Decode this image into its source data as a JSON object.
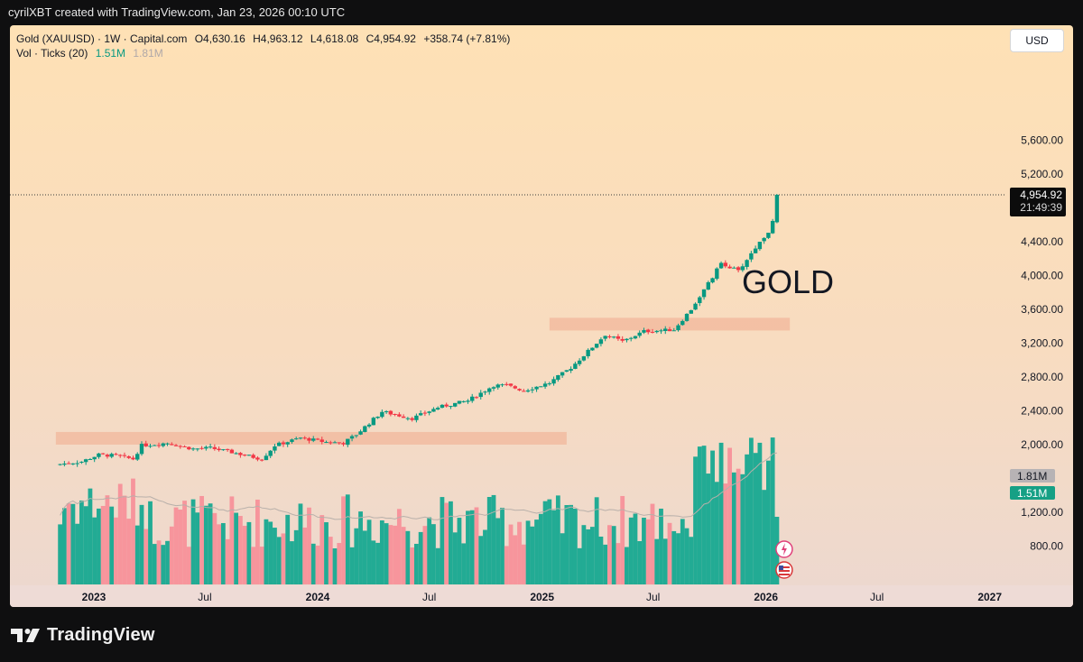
{
  "header": {
    "attribution": "cyrilXBT created with TradingView.com, Jan 23, 2026 00:10 UTC"
  },
  "legend": {
    "symbol": "Gold (XAUUSD) · 1W · Capital.com",
    "open": "O4,630.16",
    "high": "H4,963.12",
    "low": "L4,618.08",
    "close": "C4,954.92",
    "change": "+358.74 (+7.81%)",
    "vol_label": "Vol · Ticks (20)",
    "vol_value": "1.51M",
    "vol_ma": "1.81M"
  },
  "currency_button": "USD",
  "annotation": "GOLD",
  "footer": {
    "logo": "TradingView"
  },
  "colors": {
    "up": "#089981",
    "down": "#f23645",
    "up_vol": "#22ab94",
    "down_vol": "#f7959c",
    "zone": "#f2b79b"
  },
  "chart_data": {
    "type": "candlestick",
    "title": "Gold (XAUUSD) · 1W · Capital.com",
    "y_axis": {
      "ticks": [
        "5,600.00",
        "5,200.00",
        "4,400.00",
        "4,000.00",
        "3,600.00",
        "3,200.00",
        "2,800.00",
        "2,400.00",
        "2,000.00",
        "1,200.00",
        "800.00"
      ],
      "tick_values": [
        5600,
        5200,
        4400,
        4000,
        3600,
        3200,
        2800,
        2400,
        2000,
        1200,
        800
      ]
    },
    "x_axis": {
      "ticks": [
        "2023",
        "Jul",
        "2024",
        "Jul",
        "2025",
        "Jul",
        "2026",
        "Jul",
        "2027"
      ],
      "dates": [
        "2023-01-01",
        "2023-07-01",
        "2024-01-01",
        "2024-07-01",
        "2025-01-01",
        "2025-07-01",
        "2026-01-01",
        "2026-07-01",
        "2027-01-01"
      ]
    },
    "last_price": {
      "value": 4954.92,
      "label": "4,954.92",
      "countdown": "21:49:39"
    },
    "volume_labels": [
      {
        "label": "1.81M"
      },
      {
        "label": "1.51M"
      }
    ],
    "zones": [
      {
        "from_date": "2022-10-31",
        "to_date": "2025-02-10",
        "low": 2000,
        "high": 2150
      },
      {
        "from_date": "2025-01-13",
        "to_date": "2026-02-09",
        "low": 3350,
        "high": 3500
      }
    ],
    "price_path": [
      [
        "2022-11-07",
        1770,
        1650
      ],
      [
        "2022-12-12",
        1800,
        1700
      ],
      [
        "2023-01-09",
        1880,
        1760
      ],
      [
        "2023-02-06",
        1870,
        1790
      ],
      [
        "2023-03-06",
        1830,
        1740
      ],
      [
        "2023-03-20",
        1990,
        1830
      ],
      [
        "2023-05-01",
        2020,
        1950
      ],
      [
        "2023-06-12",
        1950,
        1920
      ],
      [
        "2023-07-10",
        1960,
        1930
      ],
      [
        "2023-08-14",
        1910,
        1900
      ],
      [
        "2023-10-02",
        1830,
        1820
      ],
      [
        "2023-10-23",
        1990,
        1870
      ],
      [
        "2023-12-04",
        2080,
        1990
      ],
      [
        "2024-01-15",
        2030,
        1990
      ],
      [
        "2024-02-12",
        2020,
        1990
      ],
      [
        "2024-03-04",
        2120,
        2030
      ],
      [
        "2024-04-15",
        2390,
        2300
      ],
      [
        "2024-06-03",
        2310,
        2280
      ],
      [
        "2024-07-15",
        2440,
        2360
      ],
      [
        "2024-09-02",
        2520,
        2480
      ],
      [
        "2024-10-14",
        2700,
        2620
      ],
      [
        "2024-11-04",
        2700,
        2580
      ],
      [
        "2024-12-02",
        2640,
        2620
      ],
      [
        "2025-01-13",
        2730,
        2680
      ],
      [
        "2025-02-17",
        2910,
        2870
      ],
      [
        "2025-04-14",
        3300,
        3230
      ],
      [
        "2025-05-12",
        3220,
        3180
      ],
      [
        "2025-06-16",
        3340,
        3300
      ],
      [
        "2025-08-04",
        3360,
        3330
      ],
      [
        "2025-09-01",
        3600,
        3510
      ],
      [
        "2025-10-06",
        3980,
        3930
      ],
      [
        "2025-10-20",
        4150,
        4050
      ],
      [
        "2025-11-17",
        4050,
        4010
      ],
      [
        "2025-12-15",
        4330,
        4280
      ],
      [
        "2026-01-05",
        4520,
        4490
      ],
      [
        "2026-01-12",
        4630,
        4600
      ],
      [
        "2026-01-19",
        4954.92,
        4630.16
      ]
    ]
  }
}
